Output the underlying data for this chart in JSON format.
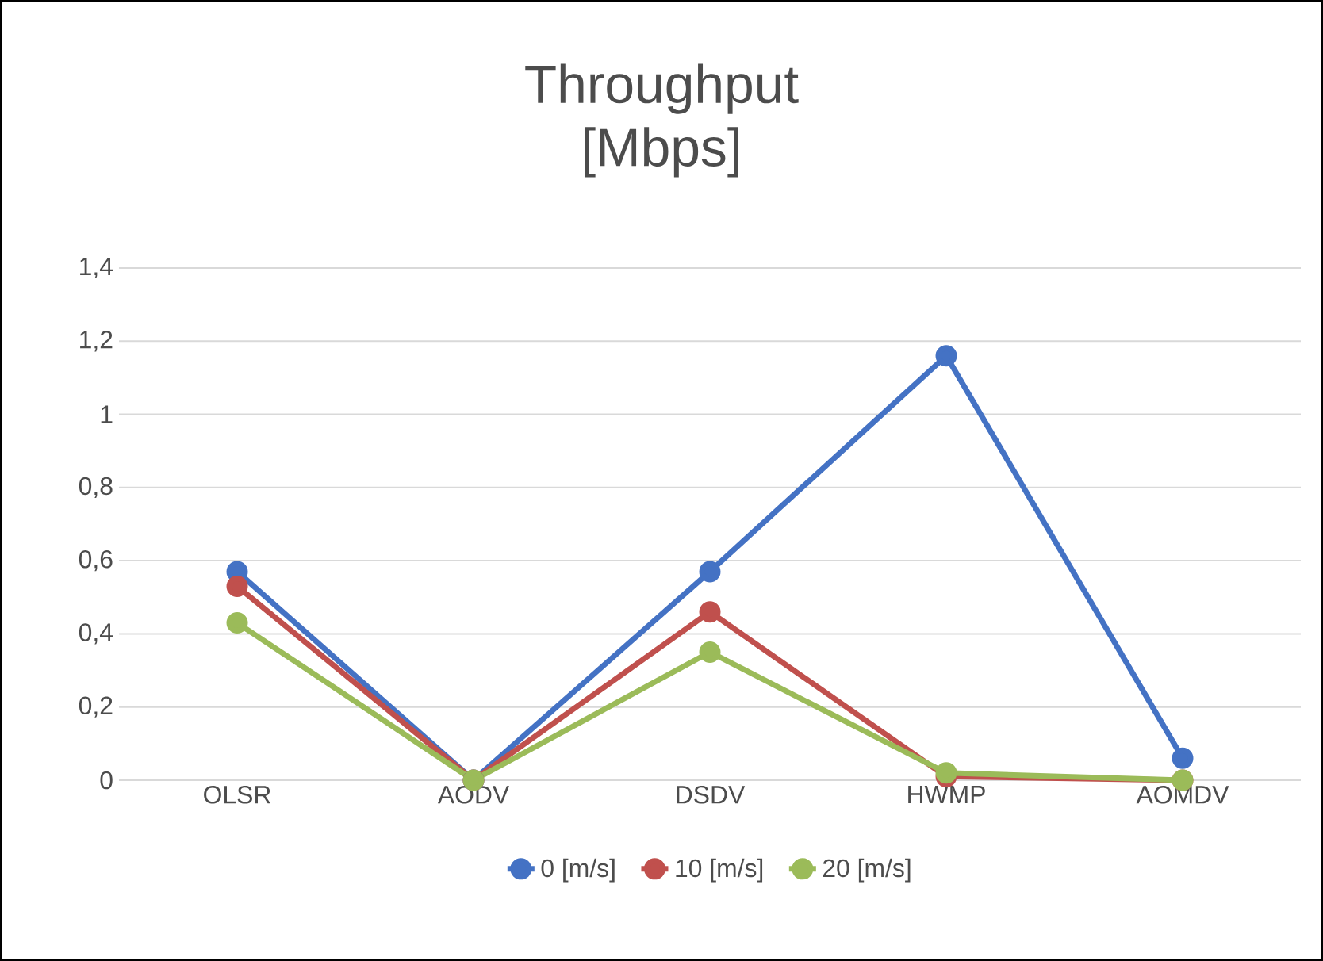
{
  "chart_data": {
    "type": "line",
    "title": "Throughput [Mbps]",
    "categories": [
      "OLSR",
      "AODV",
      "DSDV",
      "HWMP",
      "AOMDV"
    ],
    "series": [
      {
        "name": "0 [m/s]",
        "color": "#4472c4",
        "values": [
          0.57,
          0,
          0.57,
          1.16,
          0.06
        ]
      },
      {
        "name": "10 [m/s]",
        "color": "#c0504d",
        "values": [
          0.53,
          0,
          0.46,
          0.01,
          0
        ]
      },
      {
        "name": "20 [m/s]",
        "color": "#9bbb59",
        "values": [
          0.43,
          0,
          0.35,
          0.02,
          0
        ]
      }
    ],
    "ylim": [
      0,
      1.4
    ],
    "yticks": [
      0,
      {
        "value": 0.2,
        "label": "0,2"
      },
      {
        "value": 0.4,
        "label": "0,4"
      },
      {
        "value": 0.6,
        "label": "0,6"
      },
      {
        "value": 0.8,
        "label": "0,8"
      },
      1,
      {
        "value": 1.2,
        "label": "1,2"
      },
      {
        "value": 1.4,
        "label": "1,4"
      }
    ],
    "grid": "y",
    "legend": "bottom",
    "marker": "circle",
    "line_style": "solid"
  }
}
